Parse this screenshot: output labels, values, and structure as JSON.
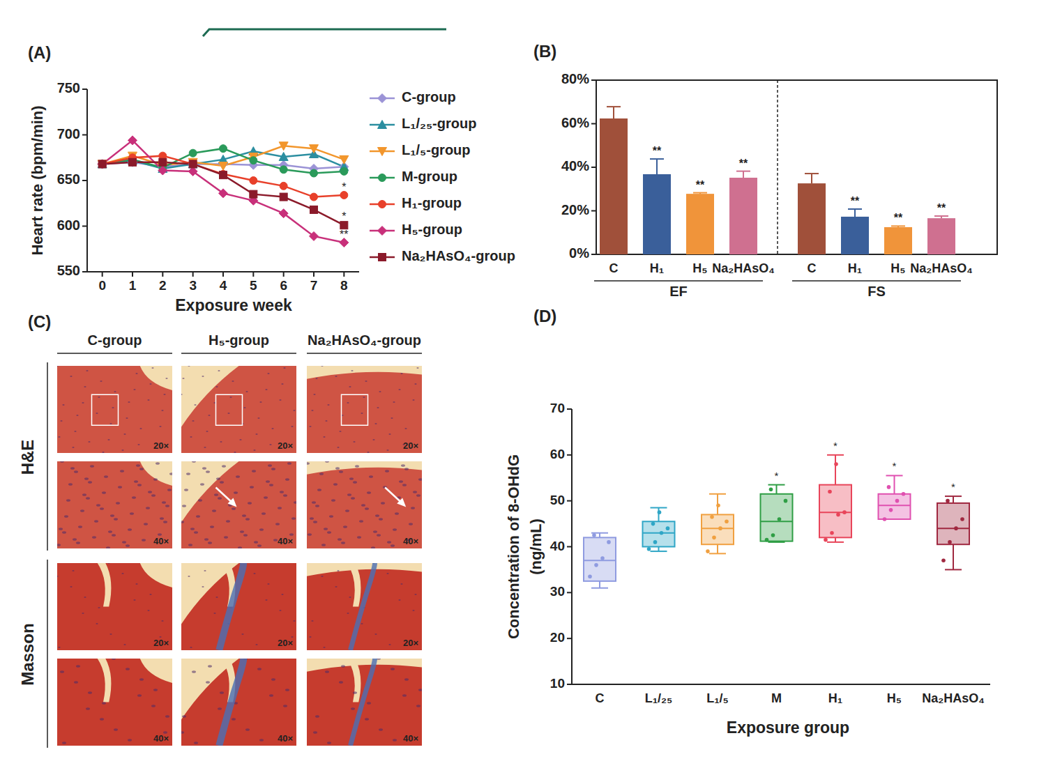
{
  "chart_data": [
    {
      "type": "line",
      "title": "(A)",
      "xlabel": "Exposure week",
      "ylabel": "Heart rate (bpm/min)",
      "x": [
        0,
        1,
        2,
        3,
        4,
        5,
        6,
        7,
        8
      ],
      "xlim": [
        -0.5,
        8.5
      ],
      "xticks": [
        0,
        1,
        2,
        3,
        4,
        5,
        6,
        7,
        8
      ],
      "ylim": [
        550,
        750
      ],
      "yticks": [
        550,
        600,
        650,
        700,
        750
      ],
      "legend": "right",
      "series": [
        {
          "name": "C-group",
          "color": "#9b93d6",
          "marker": "diamond",
          "values": [
            668,
            670,
            665,
            668,
            668,
            667,
            667,
            663,
            665
          ]
        },
        {
          "name": "L₁/₂₅-group",
          "color": "#2b8ea0",
          "marker": "triangle-up",
          "values": [
            668,
            672,
            663,
            668,
            673,
            682,
            676,
            679,
            665
          ]
        },
        {
          "name": "L₁/₅-group",
          "color": "#f2962c",
          "marker": "triangle-down",
          "values": [
            668,
            677,
            667,
            670,
            666,
            676,
            688,
            685,
            673
          ]
        },
        {
          "name": "M-group",
          "color": "#2a9a5a",
          "marker": "circle",
          "values": [
            668,
            673,
            664,
            680,
            685,
            672,
            662,
            658,
            660
          ]
        },
        {
          "name": "H₁-group",
          "color": "#e8402a",
          "marker": "circle",
          "values": [
            668,
            675,
            677,
            668,
            657,
            650,
            644,
            632,
            634
          ]
        },
        {
          "name": "H₅-group",
          "color": "#c8307a",
          "marker": "diamond",
          "values": [
            668,
            694,
            661,
            660,
            636,
            628,
            614,
            589,
            582
          ]
        },
        {
          "name": "Na₂HAsO₄-group",
          "color": "#8b1a2a",
          "marker": "square",
          "values": [
            668,
            670,
            670,
            668,
            656,
            635,
            632,
            618,
            601
          ]
        }
      ],
      "annotations": [
        {
          "text": "*",
          "x": 8,
          "y": 642
        },
        {
          "text": "*",
          "x": 8,
          "y": 610
        },
        {
          "text": "**",
          "x": 8,
          "y": 590
        }
      ]
    },
    {
      "type": "bar",
      "title": "(B)",
      "categories": [
        "C",
        "H₁",
        "H₅",
        "Na₂HAsO₄",
        "C",
        "H₁",
        "H₅",
        "Na₂HAsO₄"
      ],
      "groups": [
        "EF",
        "FS"
      ],
      "values": [
        62.4,
        36.8,
        27.8,
        35.2,
        32.6,
        17.3,
        12.5,
        16.6
      ],
      "errors": [
        5.4,
        7,
        0.5,
        3,
        4.5,
        3.5,
        0.5,
        1
      ],
      "colors": [
        "#a0503a",
        "#3a5f9a",
        "#f0943a",
        "#cf7090",
        "#a0503a",
        "#3a5f9a",
        "#f0943a",
        "#cf7090"
      ],
      "significance": [
        null,
        "**",
        "**",
        "**",
        null,
        "**",
        "**",
        "**"
      ],
      "ylim": [
        0,
        80
      ],
      "yticks": [
        {
          "value": 0,
          "label": "0%"
        },
        {
          "value": 20,
          "label": "20%"
        },
        {
          "value": 40,
          "label": "40%"
        },
        {
          "value": 60,
          "label": "60%"
        },
        {
          "value": 80,
          "label": "80%"
        }
      ]
    },
    {
      "type": "box",
      "title": "(D)",
      "xlabel": "Exposure group",
      "ylabel": [
        "Concentration of 8-OHdG",
        "(ng/mL)"
      ],
      "categories": [
        "C",
        "L₁/₂₅",
        "L₁/₅",
        "M",
        "H₁",
        "H₅",
        "Na₂HAsO₄"
      ],
      "boxes": [
        {
          "min": 31,
          "q1": 32.5,
          "median": 37,
          "q3": 42,
          "max": 43,
          "points": [
            33.5,
            36,
            37.5,
            41,
            42.5
          ]
        },
        {
          "min": 39,
          "q1": 40,
          "median": 43,
          "q3": 45.5,
          "max": 48.5,
          "points": [
            39.5,
            41,
            43,
            44,
            45,
            47.5
          ]
        },
        {
          "min": 38.5,
          "q1": 40.5,
          "median": 44,
          "q3": 47,
          "max": 51.5,
          "points": [
            39,
            42,
            44,
            45.5,
            46.5,
            49
          ]
        },
        {
          "min": 41,
          "q1": 41.2,
          "median": 45.5,
          "q3": 51.5,
          "max": 53.5,
          "points": [
            41.5,
            42.5,
            46,
            50,
            52.5
          ]
        },
        {
          "min": 41,
          "q1": 42,
          "median": 47.5,
          "q3": 53.5,
          "max": 60,
          "points": [
            41.5,
            43,
            47,
            47.5,
            52,
            58
          ]
        },
        {
          "min": 46,
          "q1": 46,
          "median": 49,
          "q3": 51.5,
          "max": 55.5,
          "points": [
            46,
            48,
            50,
            51.5,
            53
          ]
        },
        {
          "min": 35,
          "q1": 40.5,
          "median": 44,
          "q3": 49.5,
          "max": 51,
          "points": [
            37,
            41,
            44,
            46,
            50
          ]
        }
      ],
      "colors": [
        "#8f9be0",
        "#2fa6c6",
        "#f0a040",
        "#2f9e45",
        "#e8455a",
        "#e050b0",
        "#a02840"
      ],
      "significance": [
        null,
        null,
        null,
        "*",
        "*",
        "*",
        "*"
      ],
      "ylim": [
        10,
        70
      ],
      "yticks": [
        10,
        20,
        30,
        40,
        50,
        60,
        70
      ]
    }
  ],
  "panel_c": {
    "title": "(C)",
    "columns": [
      "C-group",
      "H₅-group",
      "Na₂HAsO₄-group"
    ],
    "rows": [
      {
        "stain": "H&E",
        "magnifications": [
          "20×",
          "40×"
        ]
      },
      {
        "stain": "Masson",
        "magnifications": [
          "20×",
          "40×"
        ]
      }
    ]
  }
}
